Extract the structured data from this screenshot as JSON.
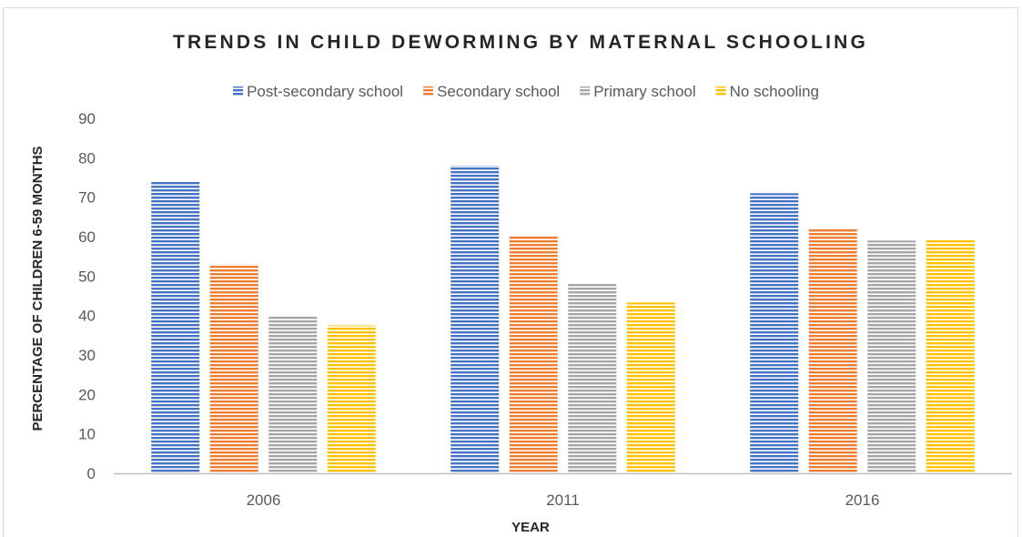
{
  "chart_data": {
    "type": "bar",
    "title": "TRENDS IN CHILD DEWORMING BY MATERNAL SCHOOLING",
    "xlabel": "YEAR",
    "ylabel": "PERCENTAGE OF CHILDREN 6-59 MONTHS",
    "categories": [
      "2006",
      "2011",
      "2016"
    ],
    "ylim": [
      0,
      90
    ],
    "yticks": [
      0,
      10,
      20,
      30,
      40,
      50,
      60,
      70,
      80,
      90
    ],
    "grid": false,
    "legend_position": "top",
    "series": [
      {
        "name": "Post-secondary school",
        "color": "#4472c4",
        "values": [
          74,
          78,
          71
        ]
      },
      {
        "name": "Secondary school",
        "color": "#ed7d31",
        "values": [
          53,
          60,
          62
        ]
      },
      {
        "name": "Primary school",
        "color": "#a5a5a5",
        "values": [
          40,
          48,
          59
        ]
      },
      {
        "name": "No schooling",
        "color": "#ffc000",
        "values": [
          37.5,
          43.3,
          59.3
        ]
      }
    ]
  }
}
